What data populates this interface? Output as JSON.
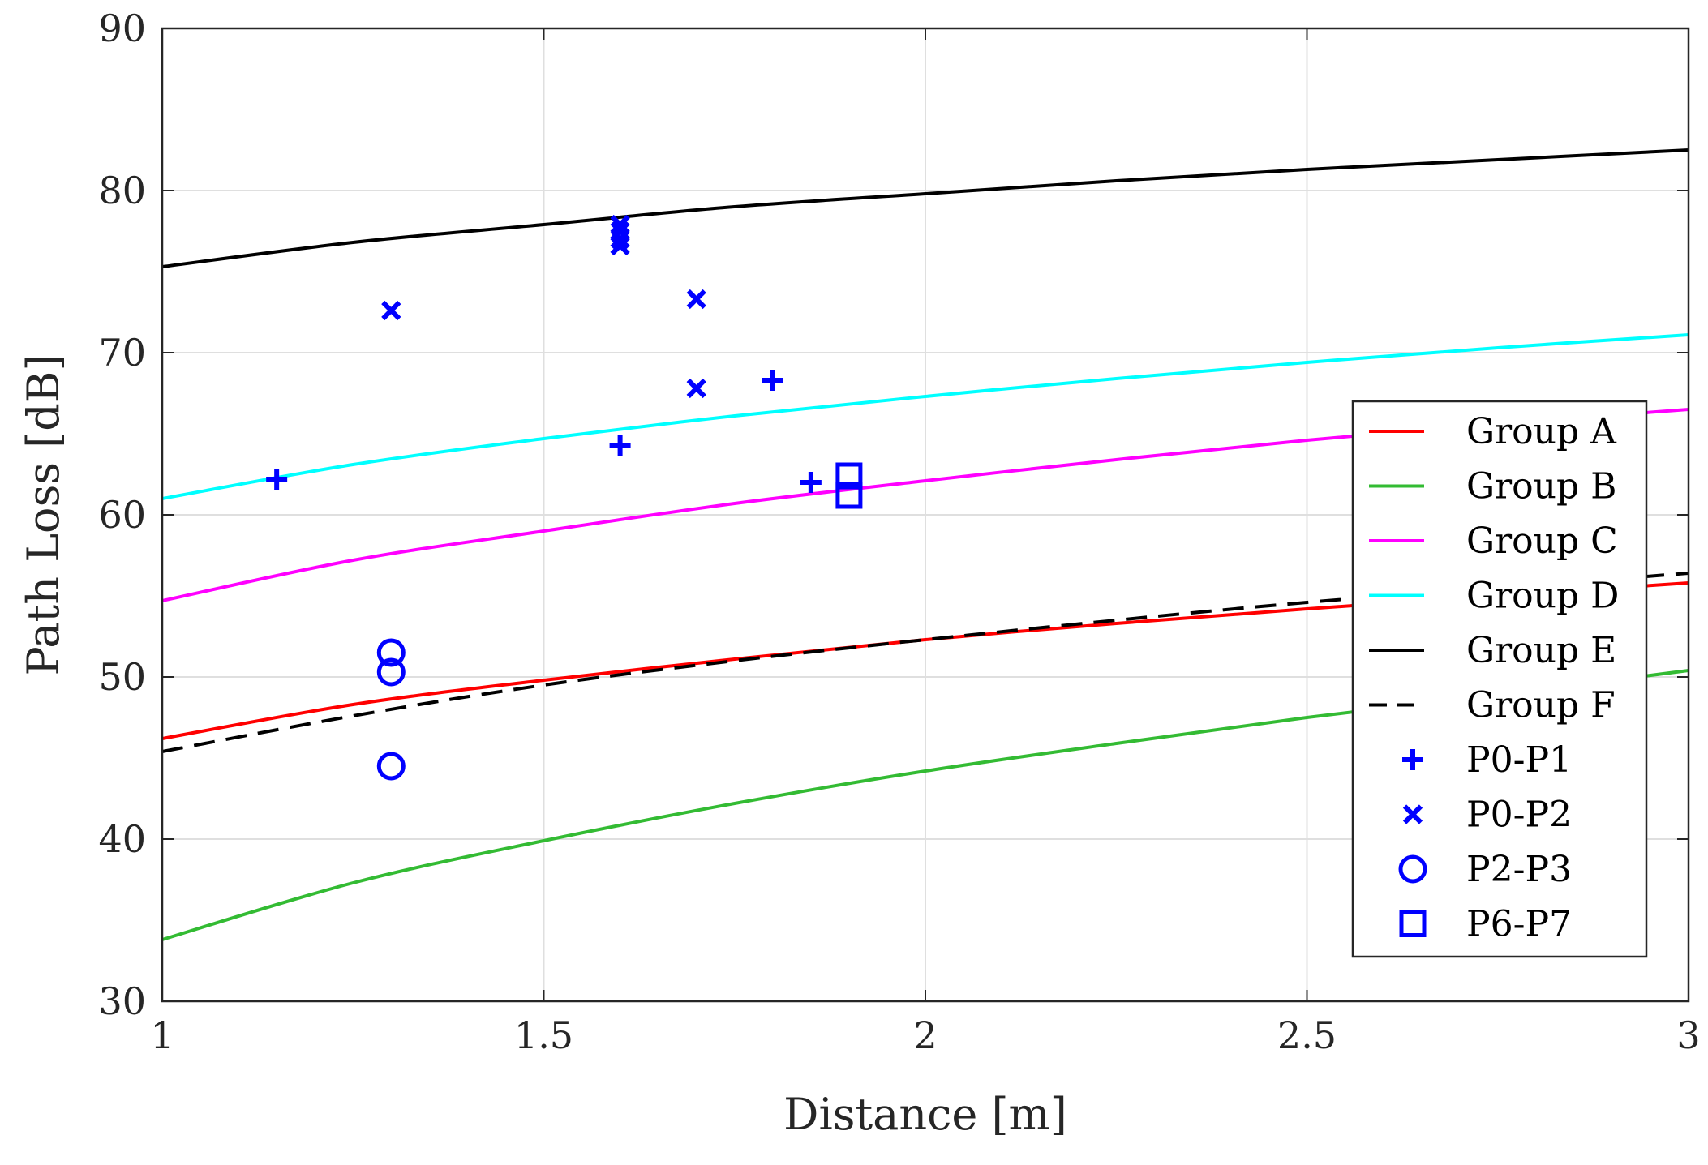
{
  "chart_data": {
    "type": "line",
    "title": "",
    "xlabel": "Distance [m]",
    "ylabel": "Path Loss [dB]",
    "xlim": [
      1,
      3
    ],
    "ylim": [
      30,
      90
    ],
    "grid": true,
    "legend_position": "right",
    "x_ticks": [
      {
        "value": 1,
        "label": "1"
      },
      {
        "value": 1.5,
        "label": "1.5"
      },
      {
        "value": 2,
        "label": "2"
      },
      {
        "value": 2.5,
        "label": "2.5"
      },
      {
        "value": 3,
        "label": "3"
      }
    ],
    "y_ticks": [
      {
        "value": 30,
        "label": "30"
      },
      {
        "value": 40,
        "label": "40"
      },
      {
        "value": 50,
        "label": "50"
      },
      {
        "value": 60,
        "label": "60"
      },
      {
        "value": 70,
        "label": "70"
      },
      {
        "value": 80,
        "label": "80"
      },
      {
        "value": 90,
        "label": "90"
      }
    ],
    "x": [
      1.0,
      1.25,
      1.5,
      1.75,
      2.0,
      2.25,
      2.5,
      2.75,
      3.0
    ],
    "series": [
      {
        "name": "Group A",
        "color": "#ff0000",
        "dash": "solid",
        "values": [
          46.2,
          48.3,
          49.8,
          51.1,
          52.3,
          53.3,
          54.2,
          55.0,
          55.8
        ]
      },
      {
        "name": "Group B",
        "color": "#33bb33",
        "dash": "solid",
        "values": [
          33.8,
          37.3,
          39.9,
          42.2,
          44.2,
          45.9,
          47.5,
          48.9,
          50.4
        ]
      },
      {
        "name": "Group C",
        "color": "#ff00ff",
        "dash": "solid",
        "values": [
          54.7,
          57.2,
          59.0,
          60.7,
          62.1,
          63.4,
          64.6,
          65.6,
          66.5
        ]
      },
      {
        "name": "Group D",
        "color": "#00ffff",
        "dash": "solid",
        "values": [
          61.0,
          63.1,
          64.7,
          66.1,
          67.3,
          68.4,
          69.4,
          70.3,
          71.1
        ]
      },
      {
        "name": "Group E",
        "color": "#000000",
        "dash": "solid",
        "values": [
          75.3,
          76.8,
          77.9,
          79.0,
          79.8,
          80.6,
          81.3,
          81.9,
          82.5
        ]
      },
      {
        "name": "Group F",
        "color": "#000000",
        "dash": "dashed",
        "values": [
          45.4,
          47.6,
          49.5,
          51.0,
          52.3,
          53.5,
          54.6,
          55.5,
          56.4
        ]
      }
    ],
    "scatter": [
      {
        "name": "P0-P1",
        "marker": "plus",
        "color": "#0000ff",
        "points": [
          [
            1.15,
            62.2
          ],
          [
            1.6,
            64.3
          ],
          [
            1.8,
            68.3
          ],
          [
            1.85,
            62.0
          ]
        ]
      },
      {
        "name": "P0-P2",
        "marker": "x",
        "color": "#0000ff",
        "points": [
          [
            1.3,
            72.6
          ],
          [
            1.6,
            77.9
          ],
          [
            1.6,
            77.5
          ],
          [
            1.6,
            77.0
          ],
          [
            1.6,
            76.6
          ],
          [
            1.7,
            73.3
          ],
          [
            1.7,
            67.8
          ]
        ]
      },
      {
        "name": "P2-P3",
        "marker": "circle",
        "color": "#0000ff",
        "points": [
          [
            1.3,
            51.5
          ],
          [
            1.3,
            50.3
          ],
          [
            1.3,
            44.5
          ]
        ]
      },
      {
        "name": "P6-P7",
        "marker": "square",
        "color": "#0000ff",
        "points": [
          [
            1.9,
            62.4
          ],
          [
            1.9,
            61.2
          ]
        ]
      }
    ]
  }
}
